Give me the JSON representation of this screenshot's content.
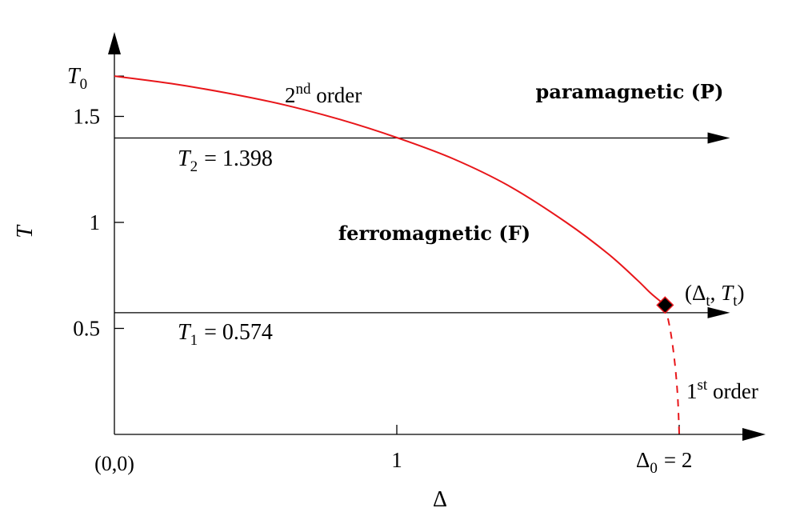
{
  "chart_data": {
    "type": "line",
    "xlabel": "Δ",
    "ylabel": "T",
    "xlim": [
      0,
      2.3
    ],
    "ylim": [
      0,
      1.9
    ],
    "x_ticks": [
      {
        "value": 1,
        "label": "1"
      },
      {
        "value": 2,
        "label": "Δ0 = 2",
        "main": "Δ",
        "sub": "0",
        "rest": "= 2"
      }
    ],
    "y_ticks": [
      {
        "value": 0.5,
        "label": "0.5"
      },
      {
        "value": 1,
        "label": "1"
      },
      {
        "value": 1.5,
        "label": "1.5"
      }
    ],
    "origin_label": "(0,0)",
    "y_top_label": {
      "value": 1.69,
      "main": "T",
      "sub": "0"
    },
    "series": [
      {
        "line_style": "solid",
        "color": "#e8161a",
        "x": [
          0,
          0.2,
          0.4,
          0.6,
          0.8,
          1.0,
          1.2,
          1.4,
          1.6,
          1.75,
          1.85,
          1.9,
          1.95
        ],
        "y": [
          1.69,
          1.655,
          1.61,
          1.555,
          1.485,
          1.4,
          1.3,
          1.17,
          1.0,
          0.85,
          0.73,
          0.665,
          0.61
        ]
      },
      {
        "line_style": "dashed",
        "color": "#e8161a",
        "x": [
          1.95,
          1.97,
          1.985,
          1.995,
          2.0
        ],
        "y": [
          0.61,
          0.48,
          0.33,
          0.17,
          0.0
        ]
      }
    ],
    "hlines": [
      {
        "y": 1.398,
        "x_end": 2.18,
        "main": "T",
        "sub": "2",
        "rest": "= 1.398"
      },
      {
        "y": 0.574,
        "x_end": 2.18,
        "main": "T",
        "sub": "1",
        "rest": "= 0.574"
      }
    ],
    "tricritical_point": {
      "x": 1.95,
      "y": 0.61,
      "label_open": "(",
      "d_main": "Δ",
      "d_sub": "t",
      "t_main": "T",
      "t_sub": "t",
      "label_close": ")"
    },
    "annotations": {
      "second_order": {
        "base": "2",
        "sup": "nd",
        "rest": " order"
      },
      "first_order": {
        "base": "1",
        "sup": "st",
        "rest": " order"
      },
      "paramagnetic": "paramagnetic (P)",
      "ferromagnetic": "ferromagnetic (F)"
    }
  }
}
